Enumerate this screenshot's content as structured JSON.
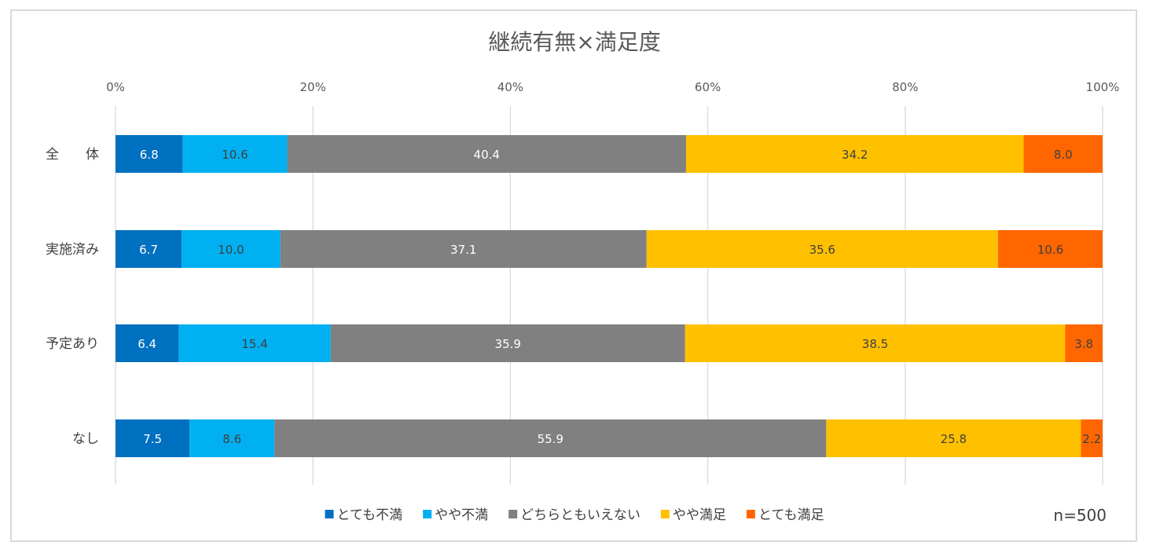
{
  "chart_data": {
    "type": "bar",
    "orientation": "horizontal",
    "stacked": "percent",
    "title": "継続有無×満足度",
    "categories": [
      "全　　体",
      "実施済み",
      "予定あり",
      "なし"
    ],
    "xlim": [
      0,
      100
    ],
    "x_ticks": [
      "0%",
      "20%",
      "40%",
      "60%",
      "80%",
      "100%"
    ],
    "grid": true,
    "legend_position": "bottom",
    "note": "n=500",
    "series": [
      {
        "name": "とても不満",
        "color": "#0070c0",
        "label_color": "#ffffff",
        "values": [
          6.8,
          6.7,
          6.4,
          7.5
        ]
      },
      {
        "name": "やや不満",
        "color": "#00b0f0",
        "label_color": "#404040",
        "values": [
          10.6,
          10.0,
          15.4,
          8.6
        ]
      },
      {
        "name": "どちらともいえない",
        "color": "#808080",
        "label_color": "#ffffff",
        "values": [
          40.4,
          37.1,
          35.9,
          55.9
        ]
      },
      {
        "name": "やや満足",
        "color": "#ffc000",
        "label_color": "#404040",
        "values": [
          34.2,
          35.6,
          38.5,
          25.8
        ]
      },
      {
        "name": "とても満足",
        "color": "#ff6600",
        "label_color": "#404040",
        "values": [
          8.0,
          10.6,
          3.8,
          2.2
        ]
      }
    ]
  }
}
